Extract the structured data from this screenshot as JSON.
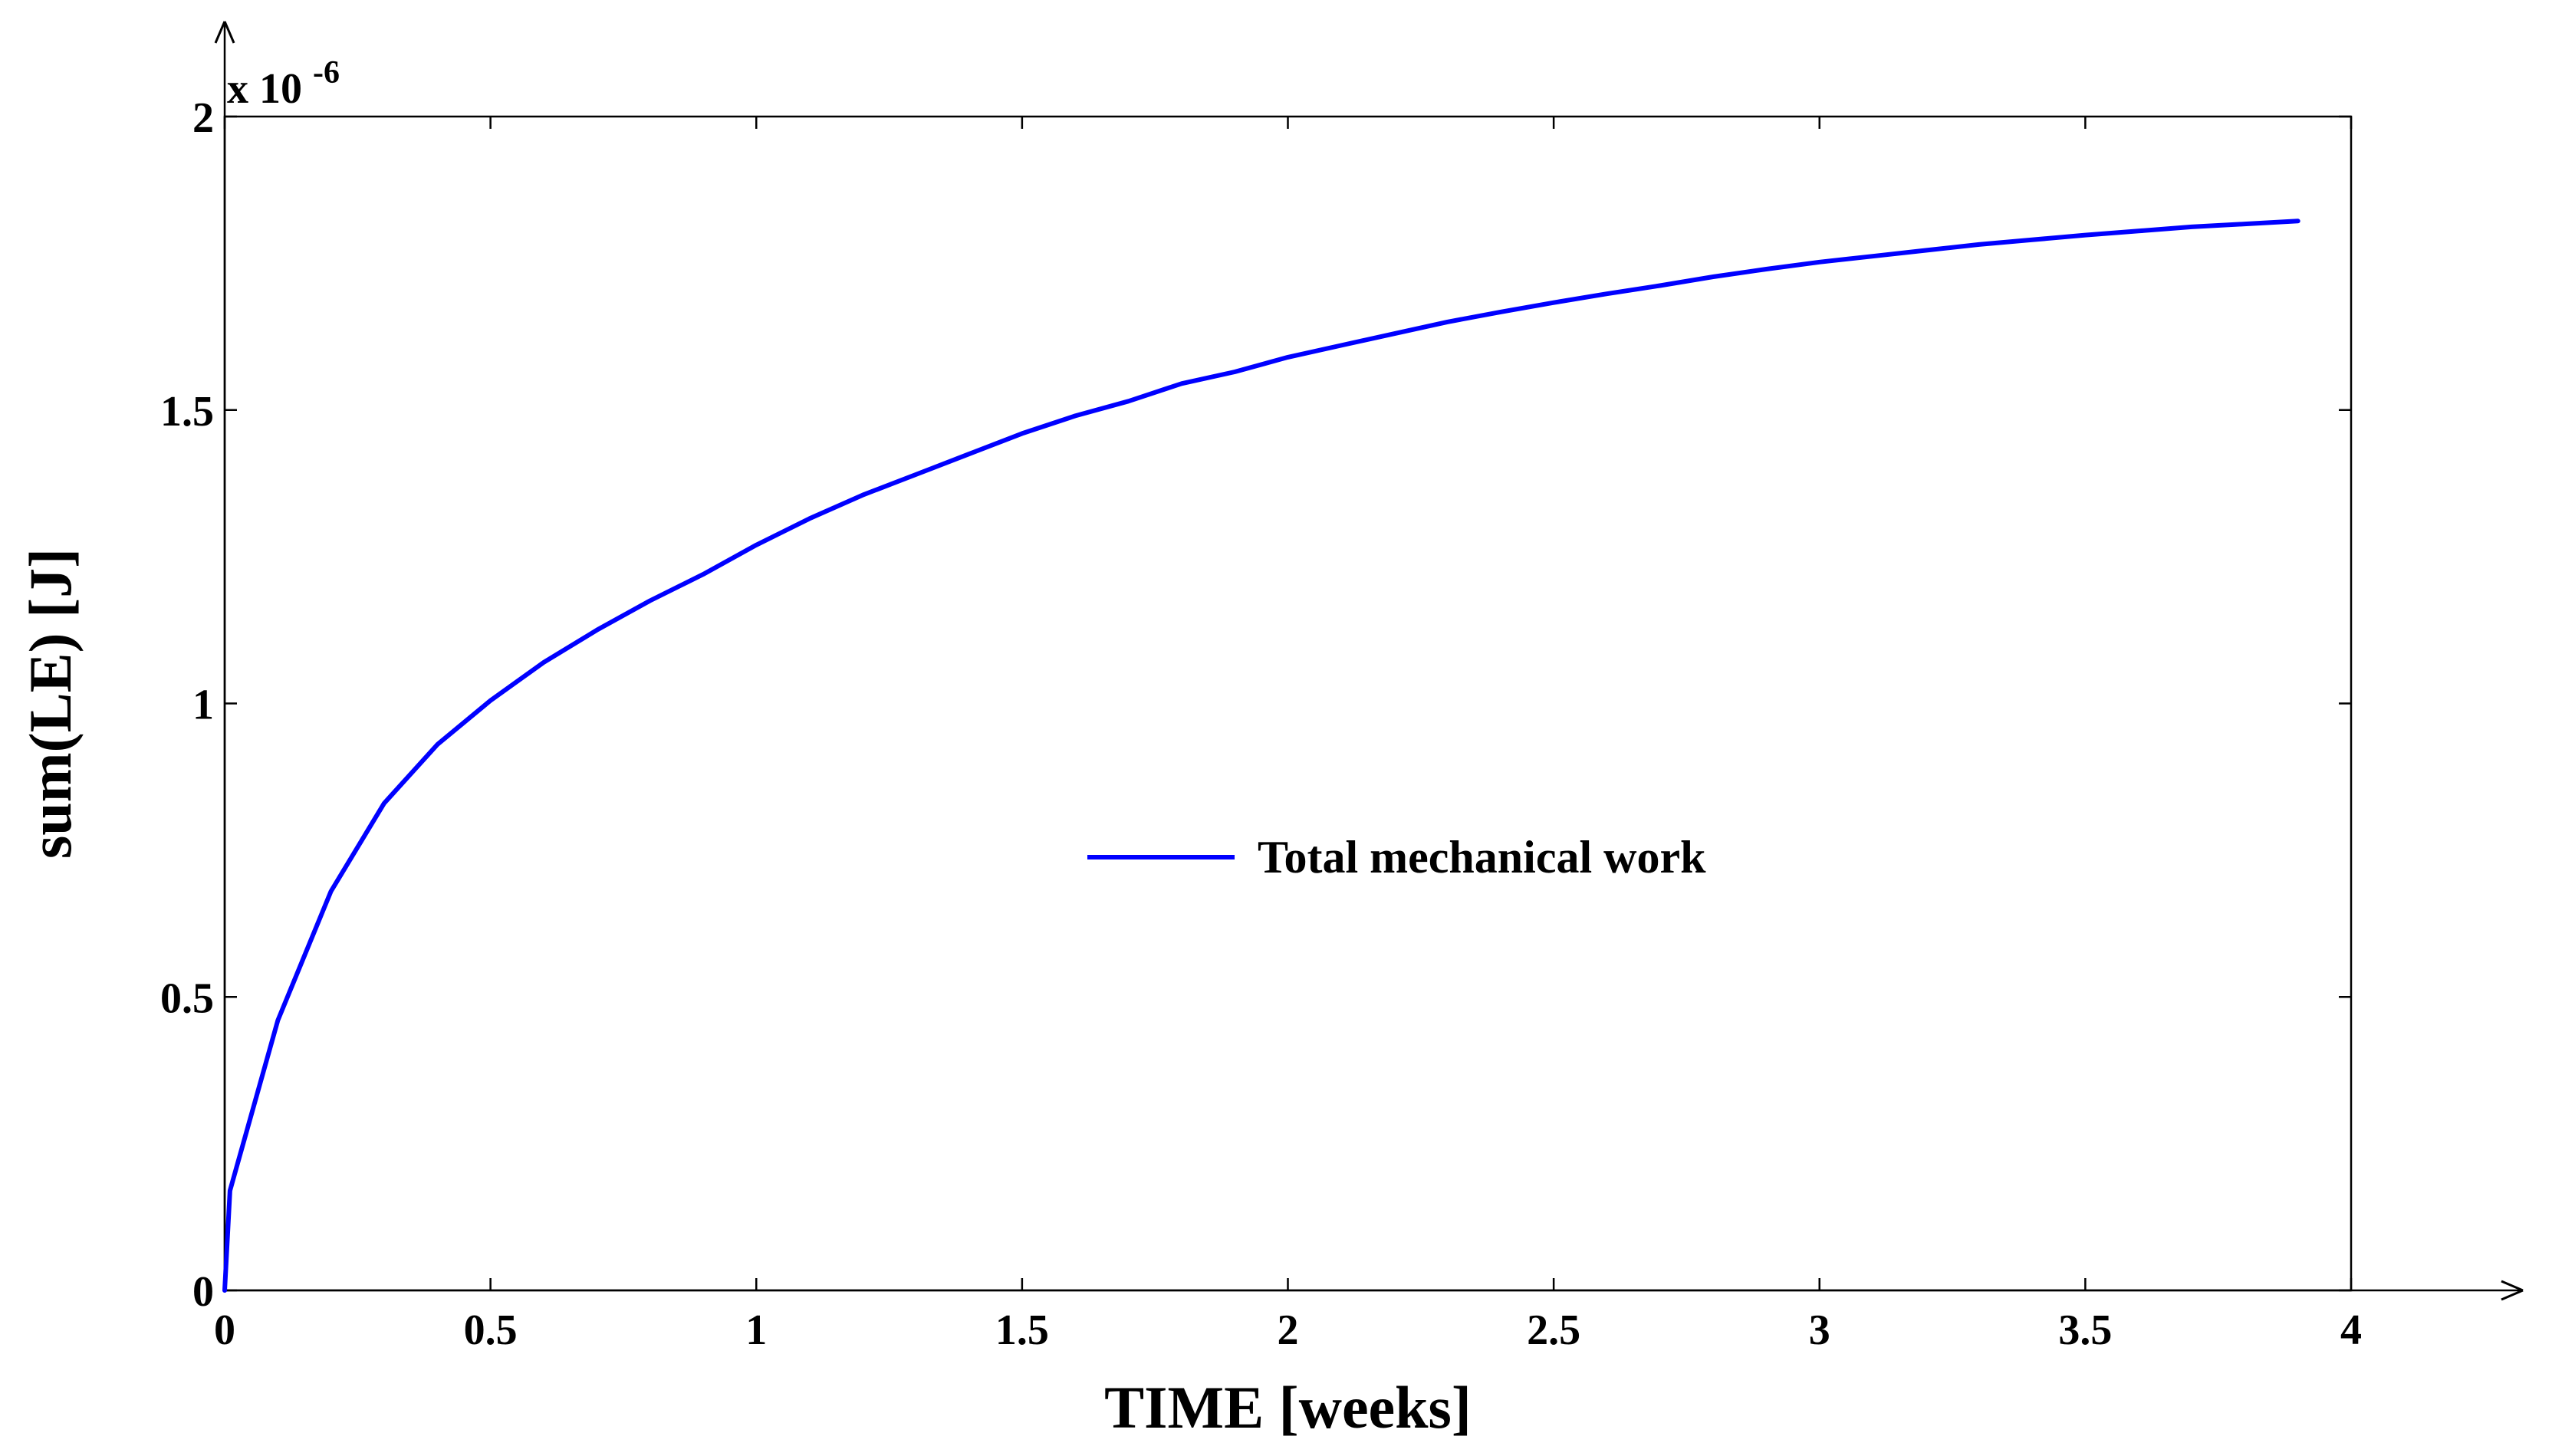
{
  "chart_data": {
    "type": "line",
    "xlabel": "TIME [weeks]",
    "ylabel": "sum(LE) [J]",
    "y_exponent_label": "x 10",
    "y_exponent_power": "-6",
    "xlim": [
      0,
      4
    ],
    "ylim": [
      0,
      2
    ],
    "x_ticks": [
      0,
      0.5,
      1,
      1.5,
      2,
      2.5,
      3,
      3.5,
      4
    ],
    "x_tick_labels": [
      "0",
      "0.5",
      "1",
      "1.5",
      "2",
      "2.5",
      "3",
      "3.5",
      "4"
    ],
    "y_ticks": [
      0,
      0.5,
      1,
      1.5,
      2
    ],
    "y_tick_labels": [
      "0",
      "0.5",
      "1",
      "1.5",
      "2"
    ],
    "grid": false,
    "legend_position": "center",
    "series": [
      {
        "name": "Total mechanical work",
        "color": "#0000ff",
        "x": [
          0,
          0.01,
          0.1,
          0.2,
          0.3,
          0.4,
          0.5,
          0.6,
          0.7,
          0.8,
          0.9,
          1.0,
          1.1,
          1.2,
          1.3,
          1.4,
          1.5,
          1.6,
          1.7,
          1.8,
          1.9,
          2.0,
          2.1,
          2.2,
          2.3,
          2.4,
          2.5,
          2.6,
          2.7,
          2.8,
          2.9,
          3.0,
          3.1,
          3.2,
          3.3,
          3.4,
          3.5,
          3.6,
          3.7,
          3.8,
          3.9
        ],
        "y": [
          0,
          0.17,
          0.46,
          0.68,
          0.83,
          0.93,
          1.005,
          1.07,
          1.125,
          1.175,
          1.22,
          1.27,
          1.315,
          1.355,
          1.39,
          1.425,
          1.46,
          1.49,
          1.515,
          1.545,
          1.565,
          1.59,
          1.61,
          1.63,
          1.65,
          1.667,
          1.683,
          1.698,
          1.712,
          1.727,
          1.74,
          1.752,
          1.762,
          1.772,
          1.782,
          1.79,
          1.798,
          1.805,
          1.812,
          1.817,
          1.822
        ]
      }
    ]
  }
}
